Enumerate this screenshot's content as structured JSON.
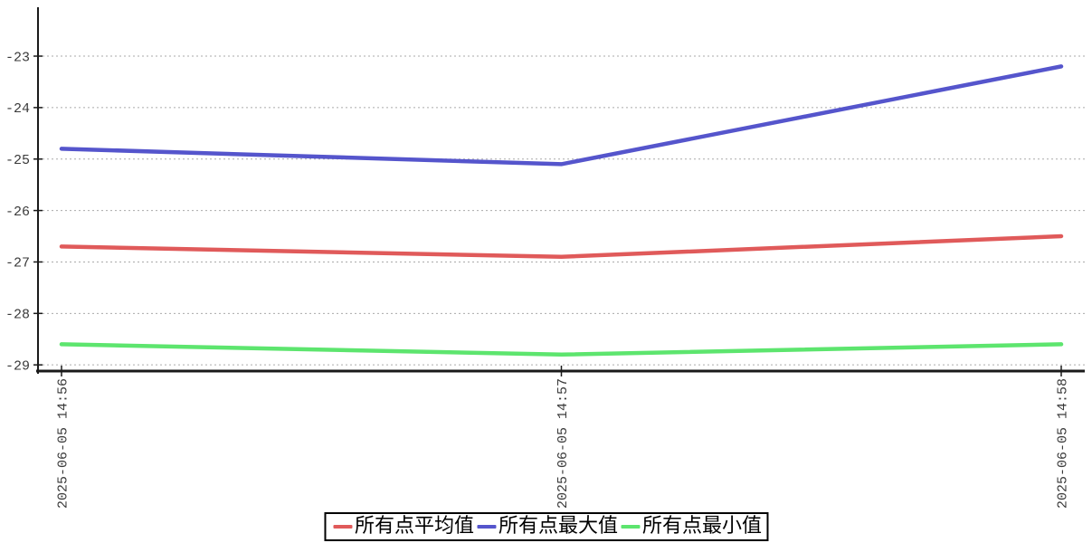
{
  "chart_data": {
    "type": "line",
    "title": "",
    "xlabel": "",
    "ylabel": "",
    "x": [
      "2025-06-05 14:56",
      "2025-06-05 14:57",
      "2025-06-05 14:58"
    ],
    "series": [
      {
        "name": "所有点平均值",
        "color": "#e05a5a",
        "values": [
          -26.7,
          -26.9,
          -26.5
        ]
      },
      {
        "name": "所有点最大值",
        "color": "#5555cc",
        "values": [
          -24.8,
          -25.1,
          -23.2
        ]
      },
      {
        "name": "所有点最小值",
        "color": "#5de56e",
        "values": [
          -28.6,
          -28.8,
          -28.6
        ]
      }
    ],
    "yticks": [
      -23,
      -24,
      -25,
      -26,
      -27,
      -28,
      -29
    ],
    "ylim": [
      -29.12,
      -22.05
    ],
    "grid": "horizontal-dashed",
    "grid_color": "#aaaaaa",
    "axis_color": "#1a1a1a",
    "tick_label_color": "#3a3a3a",
    "legend_position": "bottom-center",
    "x_tick_label_rotation_deg": -90
  }
}
